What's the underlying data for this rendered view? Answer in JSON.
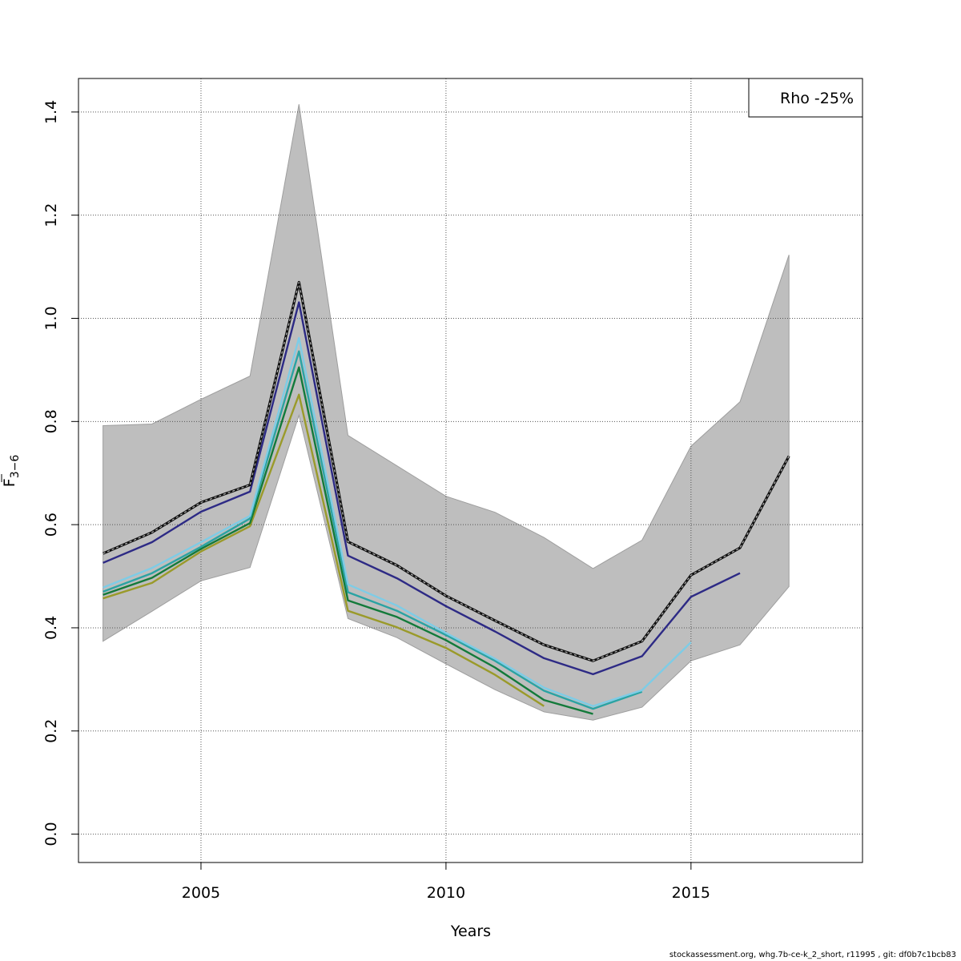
{
  "chart_data": {
    "type": "line",
    "xlabel": "Years",
    "ylabel_main": "F",
    "ylabel_sub": "3−6",
    "xlim": [
      2002.5,
      2018.5
    ],
    "ylim": [
      -0.055,
      1.465
    ],
    "x_ticks": [
      2005,
      2010,
      2015
    ],
    "y_ticks": [
      0.0,
      0.2,
      0.4,
      0.6,
      0.8,
      1.0,
      1.2,
      1.4
    ],
    "grid": true,
    "legend": {
      "position": "top-right",
      "text": "Rho -25%"
    },
    "band": {
      "x": [
        2003,
        2004,
        2005,
        2006,
        2007,
        2008,
        2009,
        2010,
        2011,
        2012,
        2013,
        2014,
        2015,
        2016,
        2017
      ],
      "upper": [
        0.792,
        0.795,
        0.843,
        0.888,
        1.415,
        0.773,
        0.714,
        0.655,
        0.624,
        0.575,
        0.515,
        0.57,
        0.752,
        0.838,
        1.123
      ],
      "lower": [
        0.374,
        0.432,
        0.491,
        0.517,
        0.812,
        0.418,
        0.381,
        0.33,
        0.28,
        0.237,
        0.221,
        0.246,
        0.336,
        0.367,
        0.48
      ]
    },
    "series": [
      {
        "color": "#9a9a2a",
        "x": [
          2003,
          2004,
          2005,
          2006,
          2007,
          2008,
          2009,
          2010,
          2011,
          2012
        ],
        "values": [
          0.457,
          0.487,
          0.548,
          0.597,
          0.852,
          0.433,
          0.401,
          0.361,
          0.309,
          0.248
        ]
      },
      {
        "color": "#137a3a",
        "x": [
          2003,
          2004,
          2005,
          2006,
          2007,
          2008,
          2009,
          2010,
          2011,
          2012,
          2013
        ],
        "values": [
          0.464,
          0.497,
          0.553,
          0.603,
          0.905,
          0.453,
          0.421,
          0.376,
          0.323,
          0.26,
          0.233
        ]
      },
      {
        "color": "#2aa3a3",
        "x": [
          2003,
          2004,
          2005,
          2006,
          2007,
          2008,
          2009,
          2010,
          2011,
          2012,
          2013,
          2014
        ],
        "values": [
          0.47,
          0.506,
          0.557,
          0.612,
          0.936,
          0.469,
          0.433,
          0.386,
          0.336,
          0.278,
          0.243,
          0.276
        ]
      },
      {
        "color": "#7ecce6",
        "x": [
          2003,
          2004,
          2005,
          2006,
          2007,
          2008,
          2009,
          2010,
          2011,
          2012,
          2013,
          2014,
          2015
        ],
        "values": [
          0.478,
          0.516,
          0.566,
          0.617,
          0.962,
          0.484,
          0.443,
          0.39,
          0.34,
          0.284,
          0.248,
          0.279,
          0.372
        ]
      },
      {
        "color": "#2d2a85",
        "x": [
          2003,
          2004,
          2005,
          2006,
          2007,
          2008,
          2009,
          2010,
          2011,
          2012,
          2013,
          2014,
          2015,
          2016
        ],
        "values": [
          0.526,
          0.566,
          0.625,
          0.664,
          1.031,
          0.54,
          0.496,
          0.442,
          0.393,
          0.341,
          0.31,
          0.345,
          0.46,
          0.506
        ]
      },
      {
        "color": "#222222",
        "dashed": true,
        "x": [
          2003,
          2004,
          2005,
          2006,
          2007,
          2008,
          2009,
          2010,
          2011,
          2012,
          2013,
          2014,
          2015,
          2016,
          2017
        ],
        "values": [
          0.544,
          0.585,
          0.643,
          0.677,
          1.07,
          0.567,
          0.521,
          0.462,
          0.414,
          0.367,
          0.336,
          0.374,
          0.502,
          0.555,
          0.733
        ]
      }
    ]
  },
  "footer": "stockassessment.org, whg.7b-ce-k_2_short, r11995 , git: df0b7c1bcb83"
}
